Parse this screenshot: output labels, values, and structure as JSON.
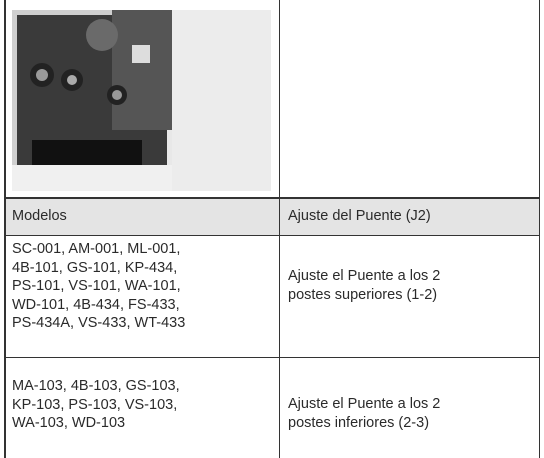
{
  "table": {
    "header": [
      "Modelos",
      "Ajuste del Puente (J2)"
    ],
    "rows": [
      [
        [
          "SC-001, AM-001, ML-001,",
          "4B-101, GS-101, KP-434,",
          "PS-101, VS-101, WA-101,",
          "WD-101, 4B-434, FS-433,",
          "PS-434A, VS-433, WT-433"
        ],
        [
          "Ajuste el Puente a los 2",
          "postes superiores (1-2)"
        ]
      ],
      [
        [
          "MA-103, 4B-103, GS-103,",
          "KP-103, PS-103, VS-103,",
          "WA-103, WD-103"
        ],
        [
          "Ajuste el Puente a los 2",
          "postes inferiores (2-3)"
        ]
      ]
    ]
  }
}
